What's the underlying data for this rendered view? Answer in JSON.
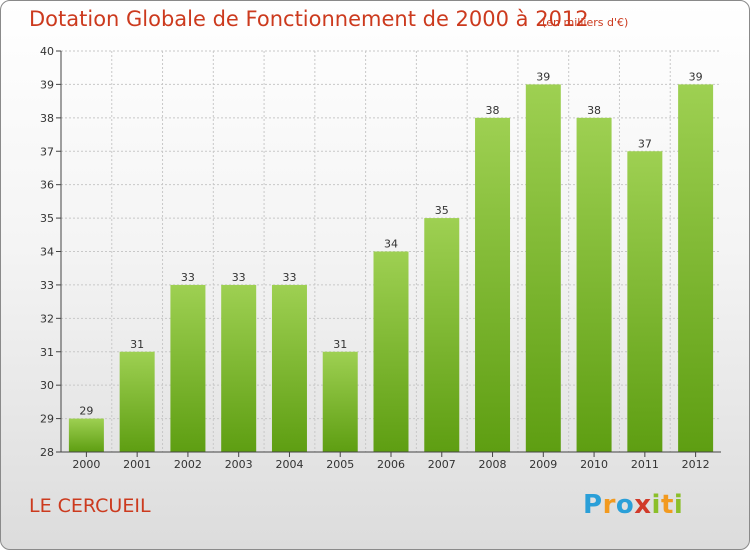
{
  "title": "Dotation Globale de Fonctionnement de 2000 à 2012",
  "subtitle": "(en milliers d'€)",
  "place": "LE CERCUEIL",
  "logo": {
    "text": "Proxiti",
    "letters": [
      "P",
      "r",
      "o",
      "x",
      "i",
      "t",
      "i"
    ]
  },
  "colors": {
    "title": "#cc3a1e",
    "bar_top": "#9ed052",
    "bar_bottom": "#5e9e12",
    "grid": "#c8c8c8",
    "axis": "#444444",
    "label": "#333333"
  },
  "chart_data": {
    "type": "bar",
    "title": "Dotation Globale de Fonctionnement de 2000 à 2012",
    "subtitle": "(en milliers d'€)",
    "categories": [
      "2000",
      "2001",
      "2002",
      "2003",
      "2004",
      "2005",
      "2006",
      "2007",
      "2008",
      "2009",
      "2010",
      "2011",
      "2012"
    ],
    "values": [
      29,
      31,
      33,
      33,
      33,
      31,
      34,
      35,
      38,
      39,
      38,
      37,
      39
    ],
    "data_labels": [
      "29",
      "31",
      "33",
      "33",
      "33",
      "31",
      "34",
      "35",
      "38",
      "39",
      "38",
      "37",
      "39"
    ],
    "ylim": [
      28,
      40
    ],
    "yticks": [
      28,
      29,
      30,
      31,
      32,
      33,
      34,
      35,
      36,
      37,
      38,
      39,
      40
    ],
    "xlabel": "",
    "ylabel": "",
    "grid": true,
    "legend": "none"
  }
}
